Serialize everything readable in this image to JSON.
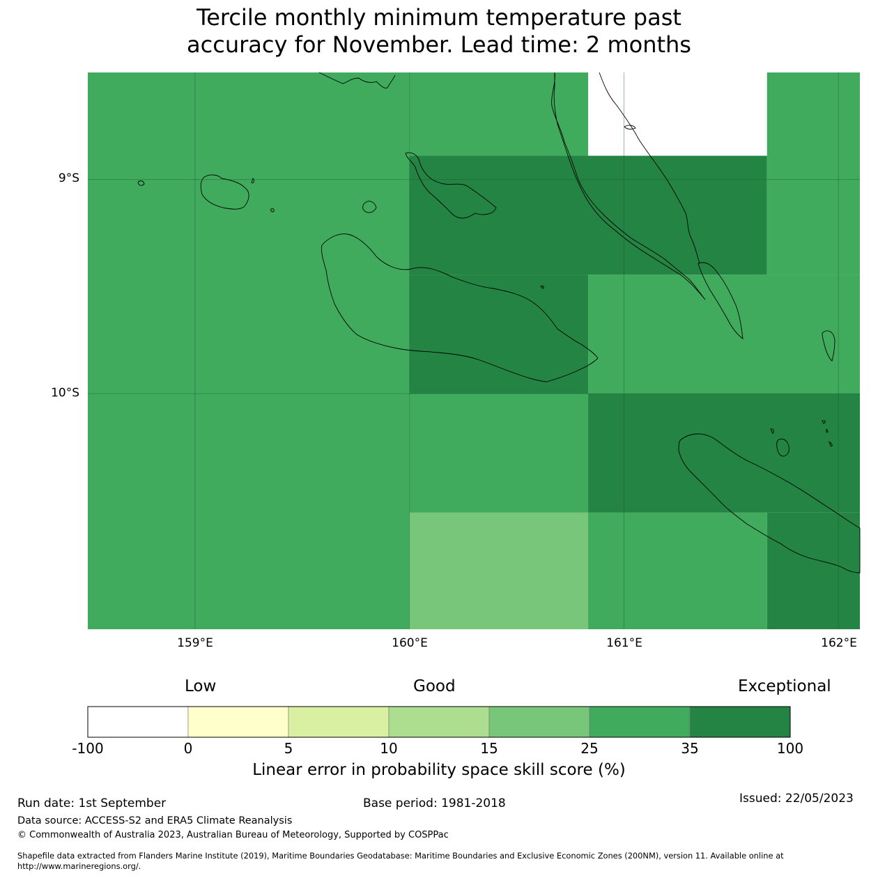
{
  "title_lines": [
    "Tercile monthly minimum temperature past",
    "accuracy for November. Lead time: 2 months"
  ],
  "map": {
    "lon_range": [
      158.5,
      162.1
    ],
    "lat_range": [
      -8.5,
      -11.1
    ],
    "lat_labels": [
      "9°S",
      "10°S"
    ],
    "lon_labels": [
      "159°E",
      "160°E",
      "161°E",
      "162°E"
    ],
    "gridlines": true,
    "skill_cells": [
      {
        "lon": [
          158.5,
          160.0
        ],
        "lat": [
          -8.5,
          -11.1
        ],
        "category": "25-35"
      },
      {
        "lon": [
          160.0,
          160.833
        ],
        "lat": [
          -8.5,
          -8.889
        ],
        "category": "25-35"
      },
      {
        "lon": [
          160.0,
          161.667
        ],
        "lat": [
          -8.889,
          -9.444
        ],
        "category": "35-100"
      },
      {
        "lon": [
          160.0,
          160.833
        ],
        "lat": [
          -9.444,
          -10.0
        ],
        "category": "35-100"
      },
      {
        "lon": [
          160.833,
          162.1
        ],
        "lat": [
          -9.444,
          -10.0
        ],
        "category": "25-35"
      },
      {
        "lon": [
          160.0,
          160.833
        ],
        "lat": [
          -10.0,
          -10.556
        ],
        "category": "25-35"
      },
      {
        "lon": [
          160.0,
          160.833
        ],
        "lat": [
          -10.556,
          -11.1
        ],
        "category": "15-25"
      },
      {
        "lon": [
          160.833,
          162.1
        ],
        "lat": [
          -10.0,
          -10.556
        ],
        "category": "35-100"
      },
      {
        "lon": [
          160.833,
          161.667
        ],
        "lat": [
          -10.556,
          -11.1
        ],
        "category": "25-35"
      },
      {
        "lon": [
          161.667,
          162.1
        ],
        "lat": [
          -10.556,
          -11.1
        ],
        "category": "35-100"
      },
      {
        "lon": [
          161.667,
          162.1
        ],
        "lat": [
          -8.5,
          -9.444
        ],
        "category": "25-35"
      }
    ]
  },
  "colorbar": {
    "descriptors": [
      "Low",
      "Good",
      "Exceptional"
    ],
    "ticks": [
      "-100",
      "0",
      "5",
      "10",
      "15",
      "25",
      "35",
      "100"
    ],
    "colors": [
      "#ffffff",
      "#ffffcc",
      "#d9f0a3",
      "#addd8e",
      "#78c679",
      "#41ab5d",
      "#238443"
    ],
    "label": "Linear error in probability space skill score (%)"
  },
  "footer": {
    "run_date": "Run date: 1st September",
    "base_period": "Base period: 1981-2018",
    "issued": "Issued: 22/05/2023",
    "data_source": "Data source: ACCESS-S2 and ERA5 Climate Reanalysis",
    "copyright": "© Commonwealth of Australia 2023, Australian Bureau of Meteorology, Supported by COSPPac",
    "shapefile_line1": "Shapefile data extracted from Flanders Marine Institute (2019), Maritime Boundaries Geodatabase: Maritime Boundaries and Exclusive Economic Zones (200NM), version 11. Available online at",
    "shapefile_line2": "http://www.marineregions.org/."
  }
}
